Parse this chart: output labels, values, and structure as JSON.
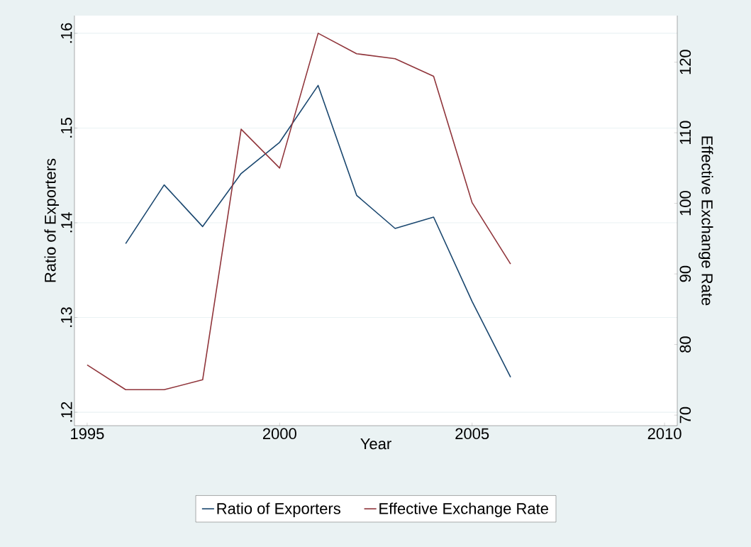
{
  "chart_data": {
    "type": "line",
    "xlabel": "Year",
    "ylabel": "Ratio of Exporters",
    "y2label": "Effective Exchange Rate",
    "series": [
      {
        "name": "Ratio of Exporters",
        "color": "#1a476f",
        "x": [
          1996,
          1997,
          1998,
          1999,
          2000,
          2001,
          2002,
          2003,
          2004,
          2005,
          2006
        ],
        "values": [
          0.1378,
          0.144,
          0.1396,
          0.1452,
          0.1485,
          0.1545,
          0.1429,
          0.1394,
          0.1406,
          0.1317,
          0.1237
        ]
      },
      {
        "name": "Effective Exchange Rate",
        "color": "#90353b",
        "axis": "y2",
        "x": [
          1995,
          1996,
          1997,
          1998,
          1999,
          2000,
          2001,
          2002,
          2003,
          2004,
          2005,
          2006
        ],
        "values": [
          77.1,
          73.6,
          73.6,
          75.0,
          110.5,
          105.0,
          124.1,
          121.2,
          120.5,
          118.0,
          100.1,
          91.4
        ]
      }
    ],
    "xlim": [
      1994.67,
      2010.33
    ],
    "xticks": [
      1995,
      2000,
      2005,
      2010
    ],
    "ylim": [
      0.11858,
      0.16187
    ],
    "yticks": [
      {
        "value": 0.12,
        "label": ".12"
      },
      {
        "value": 0.13,
        "label": ".13"
      },
      {
        "value": 0.14,
        "label": ".14"
      },
      {
        "value": 0.15,
        "label": ".15"
      },
      {
        "value": 0.16,
        "label": ".16"
      }
    ],
    "y2lim": [
      68.5,
      126.6
    ],
    "y2ticks": [
      70,
      80,
      90,
      100,
      110,
      120
    ],
    "grid": "y",
    "legend": "bottom",
    "marker": "none",
    "line_style": "solid"
  }
}
